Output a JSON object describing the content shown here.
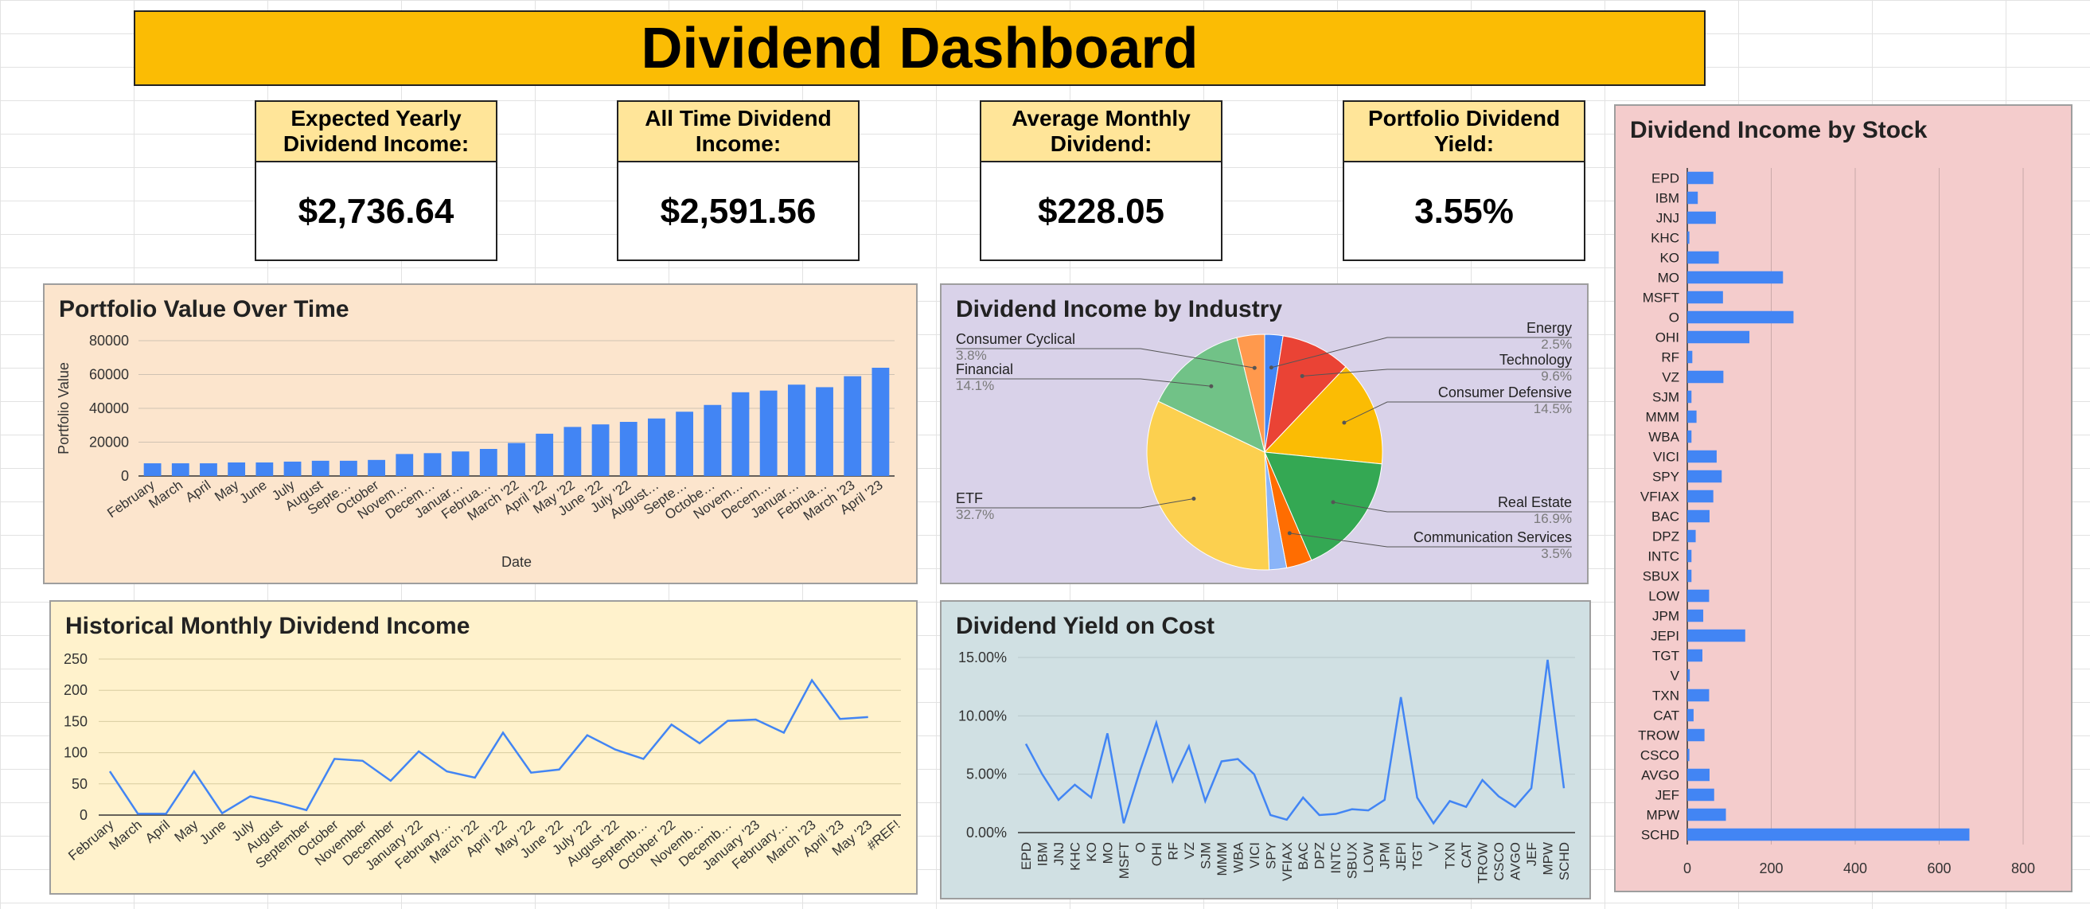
{
  "dashboard": {
    "title": "Dividend Dashboard"
  },
  "kpis": [
    {
      "label": "Expected Yearly Dividend Income:",
      "value": "$2,736.64"
    },
    {
      "label": "All Time Dividend Income:",
      "value": "$2,591.56"
    },
    {
      "label": "Average Monthly Dividend:",
      "value": "$228.05"
    },
    {
      "label": "Portfolio Dividend Yield:",
      "value": "3.55%"
    }
  ],
  "colors": {
    "accent_yellow": "#fbbc04",
    "kpi_label_bg": "#ffe599",
    "bar_blue": "#4285f4",
    "portfolio_bg": "#fce5cd",
    "industry_bg": "#d9d2e9",
    "history_bg": "#fff2cc",
    "yoc_bg": "#d0e0e3",
    "stock_bg": "#f4cccc"
  },
  "chart_data": [
    {
      "id": "portfolio",
      "type": "bar",
      "title": "Portfolio Value Over Time",
      "xlabel": "Date",
      "ylabel": "Portfolio Value",
      "ylim": [
        0,
        80000
      ],
      "yticks": [
        0,
        20000,
        40000,
        60000,
        80000
      ],
      "grid": true,
      "categories": [
        "February",
        "March",
        "April",
        "May",
        "June",
        "July",
        "August",
        "Septe…",
        "October",
        "Novem…",
        "Decem…",
        "Januar…",
        "Februa…",
        "March '22",
        "April '22",
        "May '22",
        "June '22",
        "July '22",
        "August…",
        "Septe…",
        "Octobe…",
        "Novem…",
        "Decem…",
        "Januar…",
        "Februa…",
        "March '23",
        "April '23"
      ],
      "values": [
        7500,
        7500,
        7500,
        8000,
        8000,
        8500,
        9000,
        9000,
        9500,
        13000,
        13500,
        14500,
        16000,
        19500,
        25000,
        29000,
        30500,
        32000,
        34000,
        38000,
        42000,
        49500,
        50500,
        54000,
        52500,
        59000,
        64000
      ]
    },
    {
      "id": "industry",
      "type": "pie",
      "title": "Dividend Income by Industry",
      "slices": [
        {
          "label": "Energy",
          "pct": "2.5%",
          "value": 2.5,
          "color": "#4285f4"
        },
        {
          "label": "Technology",
          "pct": "9.6%",
          "value": 9.6,
          "color": "#ea4335"
        },
        {
          "label": "Consumer Defensive",
          "pct": "14.5%",
          "value": 14.5,
          "color": "#fbbc04"
        },
        {
          "label": "Real Estate",
          "pct": "16.9%",
          "value": 16.9,
          "color": "#34a853"
        },
        {
          "label": "Communication Services",
          "pct": "3.5%",
          "value": 3.5,
          "color": "#ff6d01"
        },
        {
          "label": "",
          "pct": "",
          "value": 2.4,
          "color": "#8ab4f8"
        },
        {
          "label": "ETF",
          "pct": "32.7%",
          "value": 32.7,
          "color": "#fcd04f"
        },
        {
          "label": "Financial",
          "pct": "14.1%",
          "value": 14.1,
          "color": "#71c287"
        },
        {
          "label": "Consumer Cyclical",
          "pct": "3.8%",
          "value": 3.8,
          "color": "#ff994d"
        }
      ]
    },
    {
      "id": "history",
      "type": "line",
      "title": "Historical Monthly Dividend Income",
      "ylim": [
        0,
        250
      ],
      "yticks": [
        0,
        50,
        100,
        150,
        200,
        250
      ],
      "grid": true,
      "categories": [
        "February",
        "March",
        "April",
        "May",
        "June",
        "July",
        "August",
        "September",
        "October",
        "November",
        "December",
        "January '22",
        "February…",
        "March '22",
        "April '22",
        "May '22",
        "June '22",
        "July '22",
        "August '22",
        "Septemb…",
        "October '22",
        "Novemb…",
        "Decemb…",
        "January '23",
        "February…",
        "March '23",
        "April '23",
        "May '23",
        "#REF!"
      ],
      "values": [
        70,
        2,
        2,
        70,
        3,
        30,
        20,
        8,
        90,
        87,
        55,
        102,
        70,
        60,
        132,
        68,
        73,
        128,
        105,
        90,
        145,
        115,
        151,
        153,
        132,
        216,
        154,
        157,
        null
      ]
    },
    {
      "id": "yoc",
      "type": "line",
      "title": "Dividend Yield on Cost",
      "ylim": [
        0,
        0.15
      ],
      "yticks": [
        0,
        0.05,
        0.1,
        0.15
      ],
      "ytick_labels": [
        "0.00%",
        "5.00%",
        "10.00%",
        "15.00%"
      ],
      "grid": true,
      "categories": [
        "EPD",
        "IBM",
        "JNJ",
        "KHC",
        "KO",
        "MO",
        "MSFT",
        "O",
        "OHI",
        "RF",
        "VZ",
        "SJM",
        "MMM",
        "WBA",
        "VICI",
        "SPY",
        "VFIAX",
        "BAC",
        "DPZ",
        "INTC",
        "SBUX",
        "LOW",
        "JPM",
        "JEPI",
        "TGT",
        "V",
        "TXN",
        "CAT",
        "TROW",
        "CSCO",
        "AVGO",
        "JEF",
        "MPW",
        "SCHD"
      ],
      "values": [
        0.076,
        0.05,
        0.028,
        0.041,
        0.03,
        0.085,
        0.008,
        0.053,
        0.094,
        0.044,
        0.074,
        0.027,
        0.061,
        0.063,
        0.05,
        0.015,
        0.011,
        0.03,
        0.015,
        0.016,
        0.02,
        0.019,
        0.028,
        0.116,
        0.03,
        0.008,
        0.027,
        0.022,
        0.045,
        0.031,
        0.022,
        0.038,
        0.148,
        0.038
      ]
    },
    {
      "id": "stock",
      "type": "bar",
      "orientation": "horizontal",
      "title": "Dividend Income by Stock",
      "xlim": [
        0,
        800
      ],
      "xticks": [
        0,
        200,
        400,
        600,
        800
      ],
      "grid": true,
      "categories": [
        "EPD",
        "IBM",
        "JNJ",
        "KHC",
        "KO",
        "MO",
        "MSFT",
        "O",
        "OHI",
        "RF",
        "VZ",
        "SJM",
        "MMM",
        "WBA",
        "VICI",
        "SPY",
        "VFIAX",
        "BAC",
        "DPZ",
        "INTC",
        "SBUX",
        "LOW",
        "JPM",
        "JEPI",
        "TGT",
        "V",
        "TXN",
        "CAT",
        "TROW",
        "CSCO",
        "AVGO",
        "JEF",
        "MPW",
        "SCHD"
      ],
      "values": [
        62,
        25,
        68,
        5,
        75,
        228,
        85,
        253,
        148,
        12,
        86,
        10,
        22,
        10,
        70,
        82,
        62,
        53,
        20,
        10,
        10,
        52,
        38,
        138,
        36,
        6,
        52,
        15,
        41,
        5,
        53,
        64,
        92,
        672
      ]
    }
  ]
}
